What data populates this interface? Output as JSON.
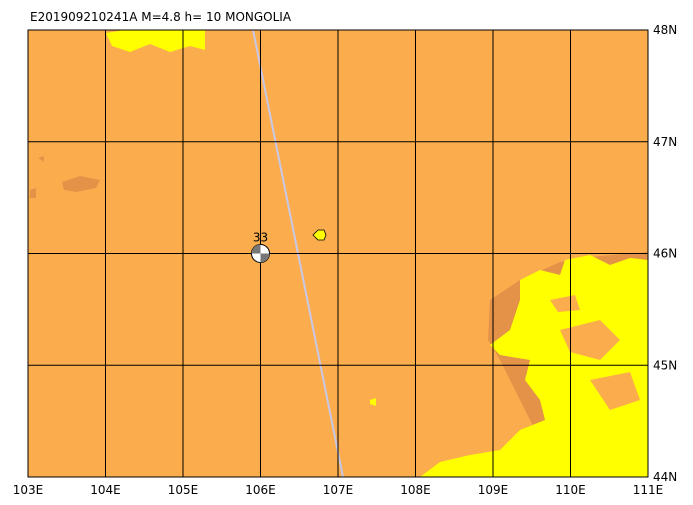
{
  "map": {
    "title": "E201909210241A M=4.8 h= 10 MONGOLIA",
    "lon_ticks": [
      {
        "value": 103,
        "label": "103E"
      },
      {
        "value": 104,
        "label": "104E"
      },
      {
        "value": 105,
        "label": "105E"
      },
      {
        "value": 106,
        "label": "106E"
      },
      {
        "value": 107,
        "label": "107E"
      },
      {
        "value": 108,
        "label": "108E"
      },
      {
        "value": 109,
        "label": "109E"
      },
      {
        "value": 110,
        "label": "110E"
      },
      {
        "value": 111,
        "label": "111E"
      }
    ],
    "lat_ticks": [
      {
        "value": 44,
        "label": "44N"
      },
      {
        "value": 45,
        "label": "45N"
      },
      {
        "value": 46,
        "label": "46N"
      },
      {
        "value": 47,
        "label": "47N"
      },
      {
        "value": 48,
        "label": "48N"
      }
    ],
    "event": {
      "label": "33",
      "lon": 106,
      "lat": 46
    }
  }
}
